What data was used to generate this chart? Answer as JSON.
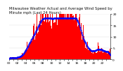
{
  "title": "Milwaukee Weather Actual and Average Wind Speed by Minute mph (Last 24 Hours)",
  "background_color": "#ffffff",
  "plot_bg_color": "#ffffff",
  "bar_color": "#ff0000",
  "line_color": "#0000ff",
  "vline_color": "#999999",
  "ylim": [
    0,
    20
  ],
  "n_points": 1440,
  "vline_positions": [
    480,
    960
  ],
  "yticks": [
    0,
    5,
    10,
    15,
    20
  ],
  "title_fontsize": 3.8,
  "tick_fontsize": 3.2,
  "seed": 12345
}
